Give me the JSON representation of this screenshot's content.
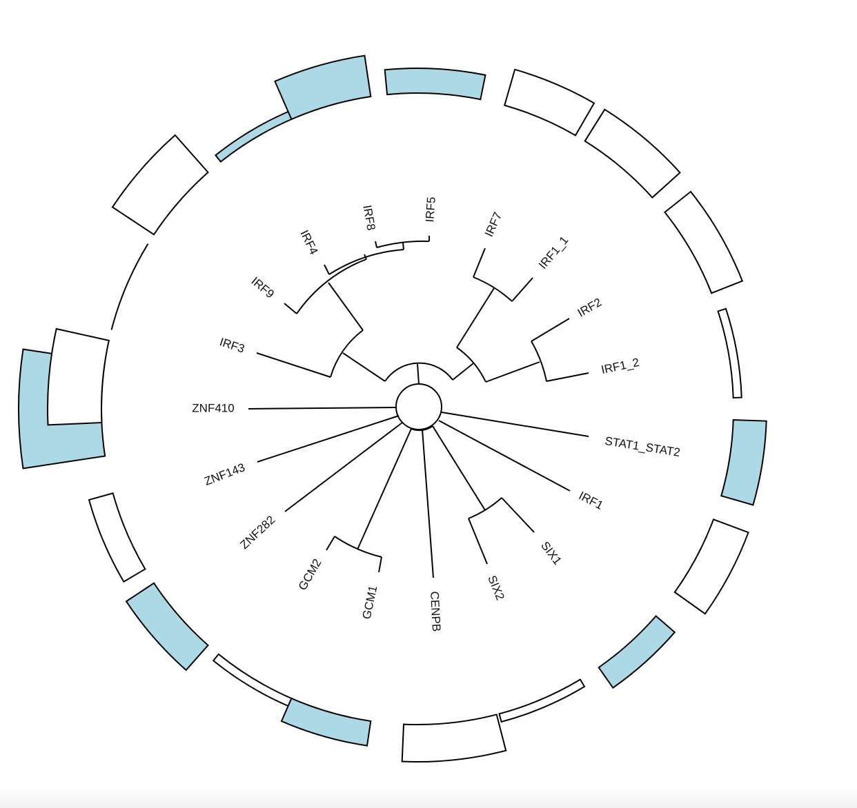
{
  "tree": {
    "layout": "circular",
    "leaves": [
      {
        "label": "ZNF410",
        "group": "none"
      },
      {
        "label": "IRF3",
        "group": "IRF"
      },
      {
        "label": "IRF9",
        "group": "IRF"
      },
      {
        "label": "IRF4",
        "group": "IRF"
      },
      {
        "label": "IRF8",
        "group": "IRF"
      },
      {
        "label": "IRF5",
        "group": "IRF"
      },
      {
        "label": "IRF7",
        "group": "IRF"
      },
      {
        "label": "IRF1_1",
        "group": "IRF"
      },
      {
        "label": "IRF2",
        "group": "IRF"
      },
      {
        "label": "IRF1_2",
        "group": "IRF"
      },
      {
        "label": "STAT1_STAT2",
        "group": "none"
      },
      {
        "label": "IRF1",
        "group": "none"
      },
      {
        "label": "SIX1",
        "group": "SIX"
      },
      {
        "label": "SIX2",
        "group": "SIX"
      },
      {
        "label": "CENPB",
        "group": "none"
      },
      {
        "label": "GCM1",
        "group": "GCM"
      },
      {
        "label": "GCM2",
        "group": "GCM"
      },
      {
        "label": "ZNF282",
        "group": "none"
      },
      {
        "label": "ZNF143",
        "group": "none"
      }
    ]
  },
  "outer_ring": {
    "fill_color": "#add8e6",
    "empty_color": "#ffffff",
    "stroke_color": "#000000",
    "segments": [
      {
        "filled": true,
        "size": 1.0
      },
      {
        "filled": false,
        "size": 0.3
      },
      {
        "filled": true,
        "size": 0.4
      },
      {
        "filled": false,
        "size": 0.1
      },
      {
        "filled": true,
        "size": 0.3
      },
      {
        "filled": false,
        "size": 0.45
      },
      {
        "filled": false,
        "size": 0.1
      },
      {
        "filled": true,
        "size": 0.3
      },
      {
        "filled": false,
        "size": 0.45
      },
      {
        "filled": true,
        "size": 0.4
      },
      {
        "filled": false,
        "size": 0.1
      },
      {
        "filled": false,
        "size": 0.4
      },
      {
        "filled": false,
        "size": 0.45
      },
      {
        "filled": false,
        "size": 0.45
      },
      {
        "filled": true,
        "size": 0.3
      },
      {
        "filled": true,
        "size": 0.5
      },
      {
        "filled": true,
        "size": 0.1
      },
      {
        "filled": false,
        "size": 0.6
      },
      {
        "filled": false,
        "size": 0.0
      },
      {
        "filled": false,
        "size": 0.65
      },
      {
        "filled": true,
        "size": 0.1
      },
      {
        "filled": true,
        "size": 0.5
      }
    ]
  }
}
